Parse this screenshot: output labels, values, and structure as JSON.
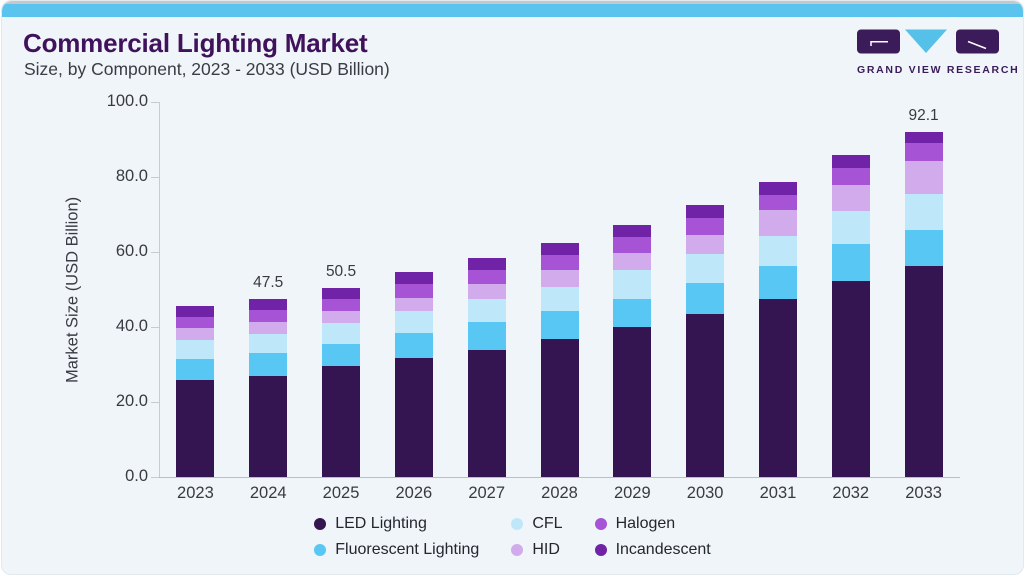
{
  "header": {
    "title": "Commercial Lighting Market",
    "subtitle": "Size, by Component, 2023 - 2033 (USD Billion)",
    "logo": {
      "brand": "GRAND VIEW RESEARCH"
    }
  },
  "colors": {
    "accent_bar": "#5ac4ee",
    "logo_purple": "#3b1b59",
    "logo_blue": "#55c0e8",
    "title_text": "#40125c",
    "card_background": "#eff5f9"
  },
  "chart_data": {
    "type": "bar",
    "stacked": true,
    "title": "Commercial Lighting Market Size, by Component, 2023 - 2033 (USD Billion)",
    "xlabel": "",
    "ylabel": "Market Size (USD Billion)",
    "ylim": [
      0,
      100
    ],
    "yticks": [
      0,
      20,
      40,
      60,
      80,
      100
    ],
    "ytick_labels": [
      "0.0",
      "20.0",
      "40.0",
      "60.0",
      "80.0",
      "100.0"
    ],
    "grid": false,
    "legend_position": "bottom",
    "categories": [
      "2023",
      "2024",
      "2025",
      "2026",
      "2027",
      "2028",
      "2029",
      "2030",
      "2031",
      "2032",
      "2033"
    ],
    "stack_order_bottom_to_top": [
      "LED Lighting",
      "Fluorescent Lighting",
      "CFL",
      "HID",
      "Halogen",
      "Incandescent"
    ],
    "series": [
      {
        "name": "LED Lighting",
        "color": "#341451",
        "values": [
          26.0,
          27.0,
          29.5,
          31.7,
          34.0,
          36.7,
          39.9,
          43.4,
          47.5,
          52.3,
          56.4
        ]
      },
      {
        "name": "Fluorescent Lighting",
        "color": "#58c7f3",
        "values": [
          5.6,
          6.0,
          6.0,
          6.7,
          7.3,
          7.5,
          7.6,
          8.3,
          8.8,
          9.9,
          9.5
        ]
      },
      {
        "name": "CFL",
        "color": "#bfe7fa",
        "values": [
          5.0,
          5.2,
          5.5,
          5.9,
          6.2,
          6.5,
          7.6,
          7.8,
          8.0,
          8.7,
          9.7
        ]
      },
      {
        "name": "HID",
        "color": "#d2abec",
        "values": [
          3.1,
          3.2,
          3.4,
          3.5,
          4.0,
          4.5,
          4.6,
          5.1,
          7.0,
          6.9,
          8.7
        ]
      },
      {
        "name": "Halogen",
        "color": "#a653d5",
        "values": [
          3.0,
          3.1,
          3.2,
          3.7,
          3.7,
          4.0,
          4.3,
          4.4,
          4.0,
          4.6,
          4.7
        ]
      },
      {
        "name": "Incandescent",
        "color": "#7123a7",
        "values": [
          2.8,
          3.0,
          2.9,
          3.2,
          3.2,
          3.3,
          3.2,
          3.5,
          3.4,
          3.5,
          3.1
        ]
      }
    ],
    "totals": [
      45.5,
      47.5,
      50.5,
      54.7,
      58.4,
      62.5,
      67.2,
      72.5,
      78.7,
      85.9,
      92.1
    ],
    "bar_total_labels": {
      "2024": "47.5",
      "2025": "50.5",
      "2033": "92.1"
    }
  },
  "legend": {
    "items": [
      {
        "label": "LED Lighting",
        "color": "#341451"
      },
      {
        "label": "Fluorescent Lighting",
        "color": "#58c7f3"
      },
      {
        "label": "CFL",
        "color": "#bfe7fa"
      },
      {
        "label": "HID",
        "color": "#d2abec"
      },
      {
        "label": "Halogen",
        "color": "#a653d5"
      },
      {
        "label": "Incandescent",
        "color": "#7123a7"
      }
    ]
  }
}
